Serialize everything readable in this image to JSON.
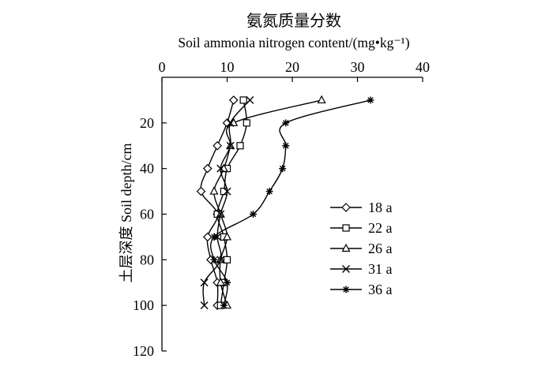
{
  "chart_data": {
    "type": "line",
    "title_cn": "氨氮质量分数",
    "title_en": "Soil ammonia nitrogen content/(mg•kg⁻¹)",
    "ylabel": "土层深度 Soil depth/cm",
    "xlim": [
      0,
      40
    ],
    "ylim": [
      0,
      120
    ],
    "x_ticks": [
      0,
      10,
      20,
      30,
      40
    ],
    "y_ticks": [
      20,
      40,
      60,
      80,
      100,
      120
    ],
    "grid": false,
    "legend_position": "right",
    "series": [
      {
        "name": "18 a",
        "marker": "diamond",
        "points": [
          [
            11.0,
            10
          ],
          [
            10.0,
            20
          ],
          [
            8.5,
            30
          ],
          [
            7.0,
            40
          ],
          [
            6.0,
            50
          ],
          [
            8.5,
            60
          ],
          [
            7.0,
            70
          ],
          [
            7.5,
            80
          ],
          [
            8.5,
            90
          ],
          [
            8.5,
            100
          ]
        ]
      },
      {
        "name": "22 a",
        "marker": "square",
        "points": [
          [
            12.5,
            10
          ],
          [
            13.0,
            20
          ],
          [
            12.0,
            30
          ],
          [
            10.0,
            40
          ],
          [
            9.5,
            50
          ],
          [
            8.5,
            60
          ],
          [
            9.5,
            70
          ],
          [
            10.0,
            80
          ],
          [
            9.5,
            90
          ],
          [
            9.0,
            100
          ]
        ]
      },
      {
        "name": "26 a",
        "marker": "triangle",
        "points": [
          [
            24.5,
            10
          ],
          [
            11.0,
            20
          ],
          [
            10.5,
            30
          ],
          [
            9.5,
            40
          ],
          [
            8.0,
            50
          ],
          [
            9.0,
            60
          ],
          [
            10.0,
            70
          ],
          [
            9.0,
            80
          ],
          [
            9.0,
            90
          ],
          [
            10.0,
            100
          ]
        ]
      },
      {
        "name": "31 a",
        "marker": "x",
        "points": [
          [
            13.5,
            10
          ],
          [
            10.5,
            20
          ],
          [
            10.5,
            30
          ],
          [
            9.0,
            40
          ],
          [
            10.0,
            50
          ],
          [
            9.0,
            60
          ],
          [
            8.5,
            70
          ],
          [
            9.0,
            80
          ],
          [
            6.5,
            90
          ],
          [
            6.5,
            100
          ]
        ]
      },
      {
        "name": "36 a",
        "marker": "star",
        "points": [
          [
            32.0,
            10
          ],
          [
            19.0,
            20
          ],
          [
            19.0,
            30
          ],
          [
            18.5,
            40
          ],
          [
            16.5,
            50
          ],
          [
            14.0,
            60
          ],
          [
            8.0,
            70
          ],
          [
            8.0,
            80
          ],
          [
            10.0,
            90
          ],
          [
            9.5,
            100
          ]
        ]
      }
    ]
  }
}
